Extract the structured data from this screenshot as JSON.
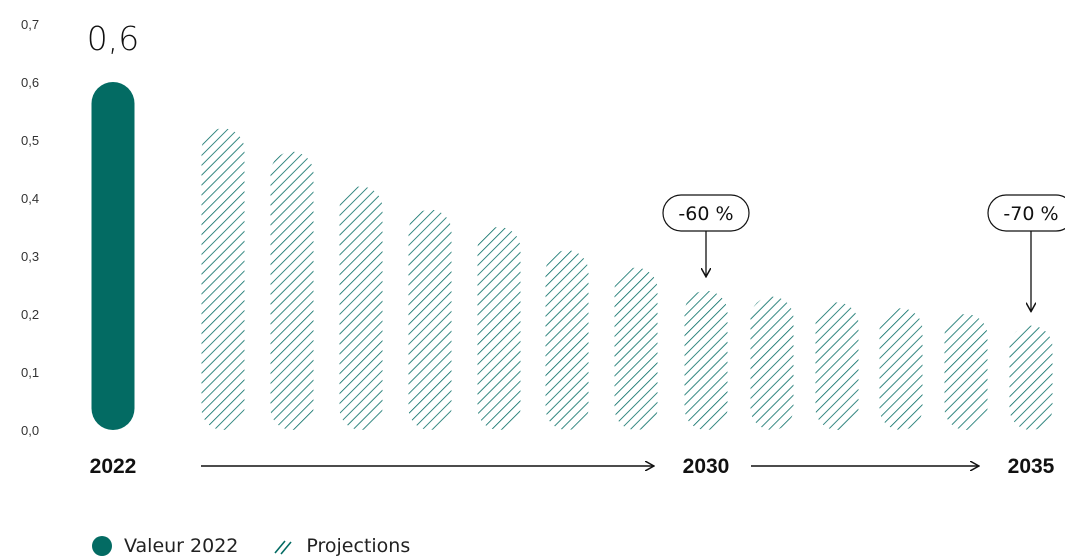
{
  "colors": {
    "accent": "#036b63",
    "text": "#111111"
  },
  "chart_data": {
    "type": "bar",
    "title": "",
    "xlabel": "",
    "ylabel": "",
    "ylim": [
      0,
      0.7
    ],
    "yticks": [
      "0,0",
      "0,1",
      "0,2",
      "0,3",
      "0,4",
      "0,5",
      "0,6",
      "0,7"
    ],
    "categories": [
      "2022",
      "",
      "",
      "",
      "",
      "",
      "",
      "",
      "2030",
      "",
      "",
      "",
      "",
      "2035"
    ],
    "series": [
      {
        "name": "Valeur 2022",
        "style": "solid",
        "values": [
          0.6,
          null,
          null,
          null,
          null,
          null,
          null,
          null,
          null,
          null,
          null,
          null,
          null,
          null
        ]
      },
      {
        "name": "Projections",
        "style": "hatched",
        "values": [
          null,
          0.52,
          0.48,
          0.42,
          0.38,
          0.35,
          0.31,
          0.28,
          0.24,
          0.23,
          0.22,
          0.21,
          0.2,
          0.18
        ]
      }
    ],
    "timeline_labels": [
      "2022",
      "2030",
      "2035"
    ],
    "value_label": "0,6",
    "annotations": [
      {
        "text": "-60 %",
        "category_index": 8
      },
      {
        "text": "-70 %",
        "category_index": 13
      }
    ],
    "legend": [
      "Valeur 2022",
      "Projections"
    ],
    "grid": false
  }
}
